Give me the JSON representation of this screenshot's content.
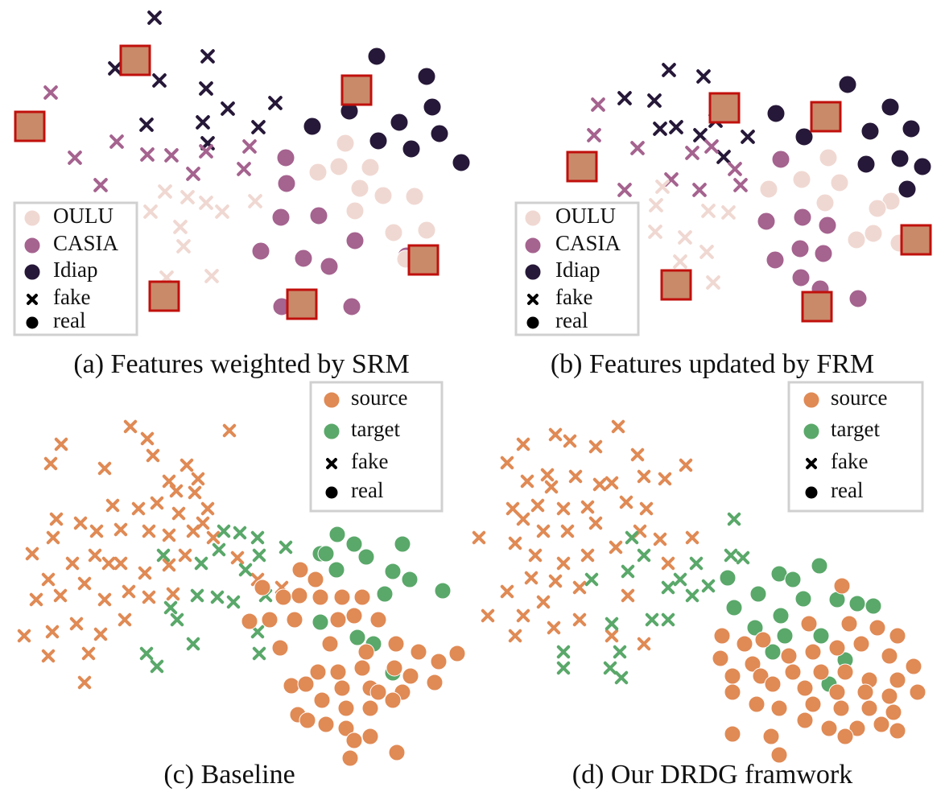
{
  "chart_data": [
    {
      "type": "scatter",
      "title": "(a) Features weighted by SRM",
      "xlim": [
        0,
        580
      ],
      "ylim": [
        440,
        0
      ],
      "legend": [
        {
          "label": "OULU",
          "color": "#f0d8d2",
          "marker": "circle"
        },
        {
          "label": "CASIA",
          "color": "#a5638f",
          "marker": "circle"
        },
        {
          "label": "Idiap",
          "color": "#261838",
          "marker": "circle"
        },
        {
          "label": "fake",
          "color": "#000000",
          "marker": "x"
        },
        {
          "label": "real",
          "color": "#000000",
          "marker": "circle"
        }
      ],
      "series": [
        {
          "color": "#261838",
          "marker": "x",
          "x": [
            192,
            143,
            258,
            198,
            256,
            283,
            182,
            252,
            321,
            342,
            258
          ],
          "y": [
            22,
            85,
            70,
            100,
            110,
            135,
            155,
            152,
            158,
            128,
            178
          ]
        },
        {
          "color": "#261838",
          "marker": "circle",
          "x": [
            468,
            530,
            434,
            537,
            388,
            496,
            470,
            511,
            573,
            546
          ],
          "y": [
            70,
            95,
            138,
            133,
            157,
            152,
            175,
            185,
            202,
            166
          ]
        },
        {
          "color": "#a5638f",
          "marker": "x",
          "x": [
            63,
            145,
            93,
            183,
            213,
            125,
            240,
            256,
            303,
            310
          ],
          "y": [
            115,
            176,
            196,
            192,
            193,
            230,
            216,
            188,
            210,
            182
          ]
        },
        {
          "color": "#a5638f",
          "marker": "circle",
          "x": [
            355,
            356,
            349,
            396,
            324,
            377,
            409,
            441,
            437,
            350,
            505
          ],
          "y": [
            196,
            228,
            270,
            268,
            312,
            321,
            331,
            299,
            381,
            381,
            318
          ]
        },
        {
          "color": "#f0d8d2",
          "marker": "x",
          "x": [
            205,
            187,
            233,
            256,
            276,
            317,
            224,
            228,
            263,
            207
          ],
          "y": [
            238,
            263,
            245,
            252,
            263,
            250,
            282,
            306,
            343,
            345
          ]
        },
        {
          "color": "#f0d8d2",
          "marker": "circle",
          "x": [
            429,
            395,
            421,
            460,
            447,
            476,
            441,
            515,
            489,
            530,
            504
          ],
          "y": [
            178,
            214,
            207,
            208,
            234,
            243,
            262,
            244,
            289,
            286,
            322
          ]
        }
      ]
    },
    {
      "type": "scatter",
      "title": "(b) Features updated by FRM",
      "xlim": [
        590,
        1170
      ],
      "ylim": [
        440,
        0
      ],
      "legend": [
        {
          "label": "OULU",
          "color": "#f0d8d2",
          "marker": "circle"
        },
        {
          "label": "CASIA",
          "color": "#a5638f",
          "marker": "circle"
        },
        {
          "label": "Idiap",
          "color": "#261838",
          "marker": "circle"
        },
        {
          "label": "fake",
          "color": "#000000",
          "marker": "x"
        },
        {
          "label": "real",
          "color": "#000000",
          "marker": "circle"
        }
      ],
      "series": [
        {
          "color": "#261838",
          "marker": "x",
          "x": [
            831,
            874,
            776,
            813,
            820,
            840,
            870,
            899,
            929,
            889
          ],
          "y": [
            87,
            95,
            122,
            125,
            160,
            158,
            168,
            195,
            170,
            150
          ]
        },
        {
          "color": "#261838",
          "marker": "circle",
          "x": [
            1053,
            1106,
            964,
            1081,
            1132,
            999,
            1076,
            1118,
            1146,
            1127
          ],
          "y": [
            105,
            133,
            141,
            163,
            160,
            170,
            204,
            197,
            207,
            235
          ]
        },
        {
          "color": "#a5638f",
          "marker": "x",
          "x": [
            743,
            738,
            792,
            860,
            834,
            776,
            869,
            913,
            920,
            884
          ],
          "y": [
            130,
            168,
            184,
            190,
            223,
            236,
            236,
            210,
            230,
            182
          ]
        },
        {
          "color": "#a5638f",
          "marker": "circle",
          "x": [
            970,
            952,
            997,
            1028,
            994,
            963,
            1023,
            995,
            1066,
            1019
          ],
          "y": [
            198,
            275,
            270,
            280,
            309,
            323,
            315,
            345,
            371,
            359
          ]
        },
        {
          "color": "#f0d8d2",
          "marker": "x",
          "x": [
            815,
            880,
            905,
            814,
            851,
            878,
            845,
            886,
            823
          ],
          "y": [
            255,
            262,
            264,
            288,
            295,
            313,
            325,
            351,
            232
          ]
        },
        {
          "color": "#f0d8d2",
          "marker": "circle",
          "x": [
            996,
            1029,
            955,
            1043,
            1025,
            1107,
            1090,
            1085,
            1064,
            1117
          ],
          "y": [
            223,
            196,
            235,
            227,
            252,
            250,
            259,
            290,
            298,
            302
          ]
        }
      ]
    },
    {
      "type": "scatter",
      "title": "(c) Baseline",
      "xlim": [
        0,
        580
      ],
      "ylim": [
        940,
        470
      ],
      "legend": [
        {
          "label": "source",
          "color": "#e08a55",
          "marker": "circle"
        },
        {
          "label": "target",
          "color": "#5aa86a",
          "marker": "circle"
        },
        {
          "label": "fake",
          "color": "#000000",
          "marker": "x"
        },
        {
          "label": "real",
          "color": "#000000",
          "marker": "circle"
        }
      ],
      "series": [
        {
          "color": "#e08a55",
          "marker": "x",
          "x": [
            162,
            183,
            285,
            76,
            63,
            190,
            130,
            232,
            210,
            246,
            219,
            242,
            140,
            172,
            195,
            222,
            258,
            70,
            100,
            40,
            66,
            120,
            150,
            185,
            210,
            240,
            60,
            90,
            118,
            150,
            180,
            210,
            45,
            75,
            105,
            130,
            160,
            185,
            215,
            30,
            65,
            95,
            125,
            155,
            60,
            110,
            105,
            295,
            320,
            350,
            252,
            265,
            135,
            230
          ],
          "y": [
            530,
            545,
            535,
            552,
            576,
            566,
            582,
            578,
            598,
            595,
            610,
            612,
            628,
            632,
            625,
            638,
            632,
            645,
            650,
            688,
            668,
            660,
            658,
            660,
            665,
            660,
            720,
            700,
            690,
            700,
            712,
            702,
            745,
            740,
            725,
            745,
            735,
            742,
            738,
            790,
            785,
            775,
            788,
            770,
            815,
            812,
            848,
            693,
            720,
            730,
            650,
            668,
            700,
            690
          ]
        },
        {
          "color": "#5aa86a",
          "marker": "x",
          "x": [
            278,
            298,
            320,
            355,
            322,
            272,
            305,
            250,
            203,
            212,
            245,
            270,
            290,
            330,
            182,
            195,
            240,
            322,
            320,
            220
          ],
          "y": [
            660,
            662,
            668,
            680,
            690,
            683,
            708,
            700,
            690,
            755,
            740,
            742,
            748,
            740,
            812,
            828,
            800,
            812,
            785,
            770
          ]
        },
        {
          "color": "#5aa86a",
          "marker": "circle",
          "x": [
            419,
            440,
            398,
            455,
            500,
            418,
            488,
            509,
            550,
            478,
            398,
            444,
            464,
            488,
            405
          ],
          "y": [
            664,
            676,
            688,
            692,
            676,
            708,
            710,
            720,
            734,
            738,
            773,
            792,
            800,
            836,
            688
          ]
        },
        {
          "color": "#e08a55",
          "marker": "circle",
          "x": [
            373,
            392,
            372,
            352,
            398,
            425,
            450,
            335,
            366,
            310,
            348,
            440,
            420,
            470,
            410,
            455,
            492,
            520,
            545,
            568,
            395,
            420,
            450,
            490,
            510,
            540,
            362,
            380,
            425,
            460,
            500,
            370,
            400,
            430,
            460,
            488,
            405,
            430,
            460,
            440,
            435,
            493,
            382,
            470,
            326
          ],
          "y": [
            708,
            720,
            740,
            742,
            742,
            742,
            742,
            770,
            770,
            772,
            805,
            765,
            770,
            770,
            800,
            810,
            800,
            810,
            822,
            812,
            835,
            835,
            830,
            830,
            840,
            848,
            852,
            850,
            855,
            855,
            860,
            888,
            870,
            880,
            880,
            870,
            900,
            905,
            915,
            920,
            942,
            935,
            895,
            860,
            730
          ]
        }
      ]
    },
    {
      "type": "scatter",
      "title": "(d) Our DRDG framwork",
      "xlim": [
        590,
        1170
      ],
      "ylim": [
        940,
        470
      ],
      "legend": [
        {
          "label": "source",
          "color": "#e08a55",
          "marker": "circle"
        },
        {
          "label": "target",
          "color": "#5aa86a",
          "marker": "circle"
        },
        {
          "label": "fake",
          "color": "#000000",
          "marker": "x"
        },
        {
          "label": "real",
          "color": "#000000",
          "marker": "circle"
        }
      ],
      "series": [
        {
          "color": "#e08a55",
          "marker": "x",
          "x": [
            768,
            690,
            708,
            650,
            740,
            630,
            792,
            852,
            680,
            715,
            655,
            745,
            800,
            826,
            685,
            760,
            637,
            668,
            700,
            730,
            778,
            803,
            650,
            675,
            705,
            740,
            795,
            595,
            640,
            665,
            700,
            730,
            765,
            820,
            860,
            630,
            660,
            690,
            720,
            675,
            650,
            606,
            688,
            640,
            720,
            760,
            800,
            830,
            780
          ],
          "y": [
            530,
            540,
            548,
            552,
            555,
            575,
            565,
            578,
            590,
            592,
            598,
            602,
            592,
            595,
            605,
            600,
            632,
            628,
            632,
            630,
            624,
            632,
            645,
            660,
            660,
            650,
            660,
            668,
            675,
            690,
            700,
            690,
            680,
            670,
            668,
            735,
            718,
            722,
            730,
            748,
            765,
            765,
            780,
            790,
            770,
            790,
            800,
            700,
            740
          ]
        },
        {
          "color": "#5aa86a",
          "marker": "x",
          "x": [
            912,
            908,
            923,
            865,
            845,
            860,
            880,
            800,
            780,
            830,
            735,
            810,
            830,
            760,
            770,
            700,
            758,
            772,
            700,
            785
          ],
          "y": [
            645,
            690,
            693,
            700,
            720,
            740,
            728,
            690,
            710,
            730,
            720,
            770,
            770,
            775,
            810,
            810,
            830,
            842,
            830,
            668
          ]
        },
        {
          "color": "#5aa86a",
          "marker": "circle",
          "x": [
            1018,
            904,
            968,
            985,
            942,
            998,
            912,
            970,
            1040,
            1065,
            1085,
            938,
            975,
            1020,
            960,
            1030,
            1050
          ],
          "y": [
            703,
            718,
            713,
            720,
            738,
            744,
            755,
            765,
            745,
            750,
            753,
            780,
            790,
            790,
            810,
            850,
            820
          ]
        },
        {
          "color": "#e08a55",
          "marker": "circle",
          "x": [
            1046,
            897,
            925,
            948,
            1005,
            1055,
            1090,
            1115,
            895,
            935,
            980,
            1010,
            1040,
            1070,
            1105,
            1135,
            910,
            945,
            985,
            1020,
            1050,
            1080,
            1115,
            910,
            960,
            1000,
            1040,
            1075,
            1105,
            1140,
            940,
            968,
            1010,
            1045,
            1080,
            1110,
            1000,
            1030,
            1065,
            1095,
            1050,
            1115,
            910,
            958,
            968
          ],
          "y": [
            728,
            790,
            800,
            795,
            775,
            775,
            780,
            790,
            818,
            825,
            815,
            810,
            805,
            800,
            815,
            828,
            840,
            840,
            835,
            835,
            835,
            845,
            845,
            860,
            850,
            855,
            860,
            860,
            865,
            860,
            875,
            880,
            875,
            880,
            880,
            885,
            895,
            905,
            905,
            900,
            915,
            908,
            912,
            915,
            938
          ]
        }
      ]
    }
  ]
}
